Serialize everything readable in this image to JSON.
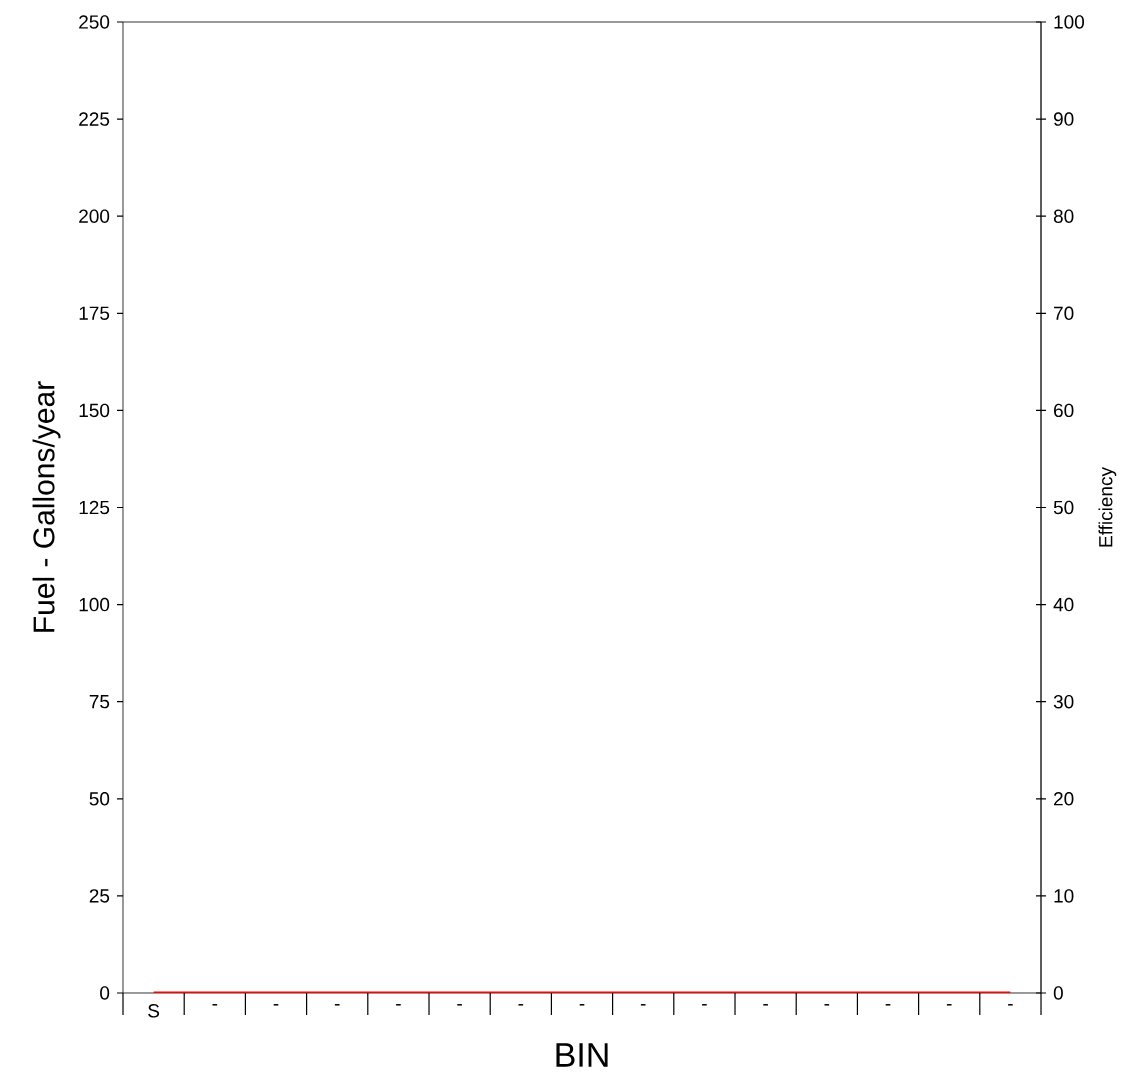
{
  "chart_data": {
    "type": "line",
    "xlabel": "BIN",
    "ylabel": "Fuel - Gallons/year",
    "y2label": "Efficiency",
    "categories": [
      "S",
      "-",
      "-",
      "-",
      "-",
      "-",
      "-",
      "-",
      "-",
      "-",
      "-",
      "-",
      "-",
      "-",
      "-"
    ],
    "series": [
      {
        "color": "#ff0000",
        "values": [
          0,
          0,
          0,
          0,
          0,
          0,
          0,
          0,
          0,
          0,
          0,
          0,
          0,
          0,
          0
        ]
      }
    ],
    "ylim": [
      0,
      250
    ],
    "yticks": [
      0,
      25,
      50,
      75,
      100,
      125,
      150,
      175,
      200,
      225,
      250
    ],
    "y2lim": [
      0,
      100
    ],
    "y2ticks": [
      0,
      10,
      20,
      30,
      40,
      50,
      60,
      70,
      80,
      90,
      100
    ],
    "marker": "none",
    "grid": false
  }
}
